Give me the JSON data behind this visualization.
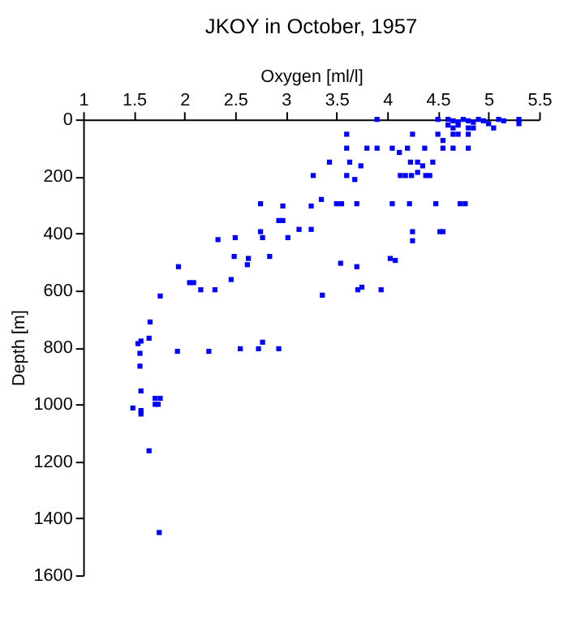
{
  "chart_data": {
    "type": "scatter",
    "title": "JKOY in October, 1957",
    "xlabel": "Oxygen [ml/l]",
    "ylabel": "Depth [m]",
    "x": [
      3.9,
      4.5,
      4.6,
      4.65,
      4.7,
      4.75,
      4.8,
      4.85,
      4.9,
      4.95,
      5.0,
      5.1,
      5.15,
      5.3,
      5.3,
      4.6,
      4.7,
      4.65,
      4.8,
      4.85,
      5.05,
      3.6,
      4.25,
      4.5,
      4.65,
      4.7,
      4.8,
      4.55,
      3.6,
      3.8,
      3.9,
      4.05,
      4.2,
      4.37,
      4.55,
      4.65,
      4.8,
      4.12,
      3.43,
      3.63,
      4.23,
      4.3,
      4.45,
      3.74,
      4.35,
      4.3,
      3.27,
      3.6,
      4.13,
      4.18,
      4.24,
      4.38,
      4.42,
      3.68,
      3.35,
      2.75,
      3.5,
      3.55,
      3.7,
      4.05,
      4.22,
      4.48,
      4.72,
      4.77,
      2.97,
      3.25,
      2.97,
      2.93,
      3.13,
      3.25,
      2.75,
      4.25,
      4.55,
      4.52,
      2.5,
      2.77,
      3.02,
      2.33,
      4.25,
      2.49,
      2.84,
      2.63,
      4.03,
      4.08,
      3.54,
      3.7,
      2.62,
      1.94,
      2.05,
      2.09,
      2.46,
      2.16,
      2.3,
      3.36,
      3.71,
      3.75,
      3.94,
      1.76,
      1.66,
      1.65,
      1.57,
      1.54,
      2.77,
      2.93,
      2.55,
      2.73,
      2.24,
      1.93,
      1.56,
      1.56,
      1.57,
      1.71,
      1.76,
      1.71,
      1.74,
      1.49,
      1.57,
      1.57,
      1.65,
      1.75
    ],
    "values": [
      0,
      0,
      0,
      5,
      10,
      0,
      5,
      10,
      0,
      5,
      15,
      0,
      5,
      0,
      15,
      20,
      20,
      30,
      30,
      30,
      30,
      52,
      52,
      52,
      52,
      52,
      52,
      74,
      101,
      101,
      101,
      101,
      101,
      101,
      101,
      101,
      101,
      116,
      150,
      150,
      150,
      150,
      150,
      163,
      163,
      186,
      197,
      197,
      197,
      197,
      197,
      197,
      197,
      211,
      281,
      296,
      296,
      296,
      296,
      296,
      296,
      296,
      296,
      296,
      304,
      304,
      355,
      355,
      386,
      386,
      394,
      394,
      394,
      394,
      415,
      415,
      415,
      422,
      426,
      481,
      481,
      488,
      488,
      495,
      505,
      517,
      510,
      517,
      573,
      573,
      562,
      598,
      598,
      617,
      598,
      589,
      598,
      620,
      711,
      768,
      778,
      787,
      782,
      805,
      805,
      805,
      814,
      814,
      821,
      866,
      953,
      979,
      979,
      1000,
      1000,
      1013,
      1022,
      1034,
      1163,
      1450
    ],
    "color": "#0000ff",
    "marker": "square",
    "xlim": [
      1,
      5.5
    ],
    "xticks": [
      1,
      1.5,
      2,
      2.5,
      3,
      3.5,
      4,
      4.5,
      5,
      5.5
    ],
    "ylim": [
      1600,
      0
    ],
    "yticks": [
      0,
      200,
      400,
      600,
      800,
      1000,
      1200,
      1400,
      1600
    ],
    "grid": false
  }
}
